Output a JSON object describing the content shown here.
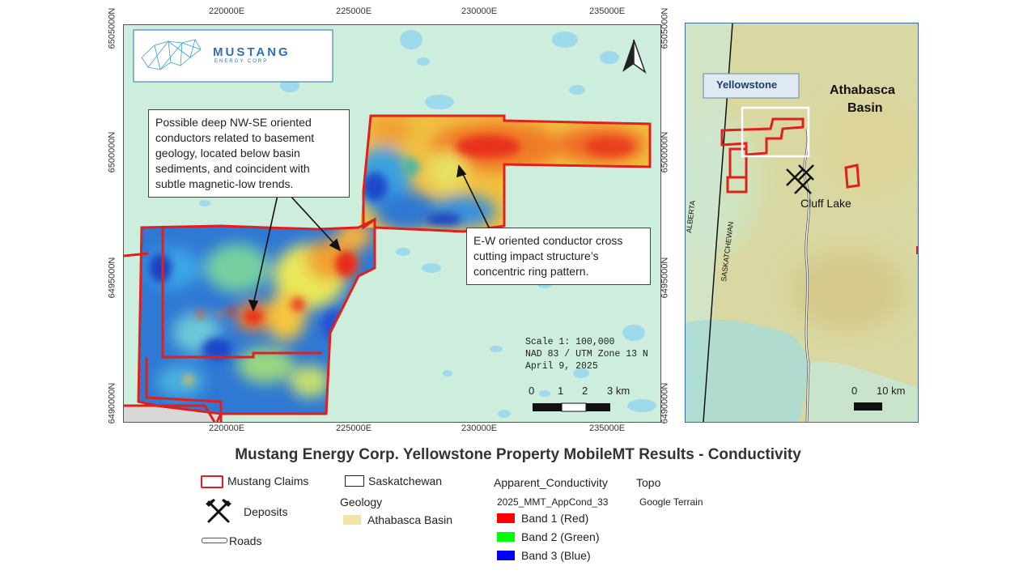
{
  "main_map": {
    "top_x_labels": [
      "220000E",
      "225000E",
      "230000E",
      "235000E"
    ],
    "bottom_x_labels": [
      "220000E",
      "225000E",
      "230000E",
      "235000E"
    ],
    "left_y_labels": [
      "6505000N",
      "6500000N",
      "6495000N",
      "6490000N"
    ],
    "right_y_labels": [
      "6505000N",
      "6500000N",
      "6495000N",
      "6490000N"
    ],
    "logo": {
      "name": "MUSTANG",
      "sub": "ENERGY CORP"
    },
    "callout_ne": "Possible deep NW-SE oriented conductors related to basement geology, located below basin sediments, and coincident with subtle magnetic-low trends.",
    "callout_ew": "E-W oriented conductor cross cutting impact structure’s concentric ring pattern.",
    "scale_info": [
      "Scale 1: 100,000",
      "NAD 83 / UTM Zone 13 N",
      "April 9, 2025"
    ],
    "scalebar_labels": [
      "0",
      "1",
      "2",
      "3 km"
    ]
  },
  "inset_map": {
    "label_yellowstone": "Yellowstone",
    "label_basin_1": "Athabasca",
    "label_basin_2": "Basin",
    "label_cluff": "Cluff Lake",
    "label_alberta": "ALBERTA",
    "label_sask": "SASKATCHEWAN",
    "scalebar_labels": [
      "0",
      "10 km"
    ]
  },
  "title": "Mustang Energy Corp. Yellowstone Property MobileMT Results - Conductivity",
  "legend": {
    "claims": "Mustang Claims",
    "deposits": "Deposits",
    "roads": "Roads",
    "saskatchewan": "Saskatchewan",
    "geology_header": "Geology",
    "athabasca": "Athabasca Basin",
    "apparent_header": "Apparent_Conductivity",
    "layer_name": "2025_MMT_AppCond_33",
    "bands": [
      {
        "label": "Band 1 (Red)",
        "color": "#ff0000"
      },
      {
        "label": "Band 2 (Green)",
        "color": "#00ff00"
      },
      {
        "label": "Band 3 (Blue)",
        "color": "#0000ff"
      }
    ],
    "topo_header": "Topo",
    "topo_value": "Google Terrain"
  },
  "colors": {
    "claims": "#e0201e",
    "water": "#9fd9ec",
    "terrain": "#cdeedd",
    "basin": "#f2e3a8"
  }
}
